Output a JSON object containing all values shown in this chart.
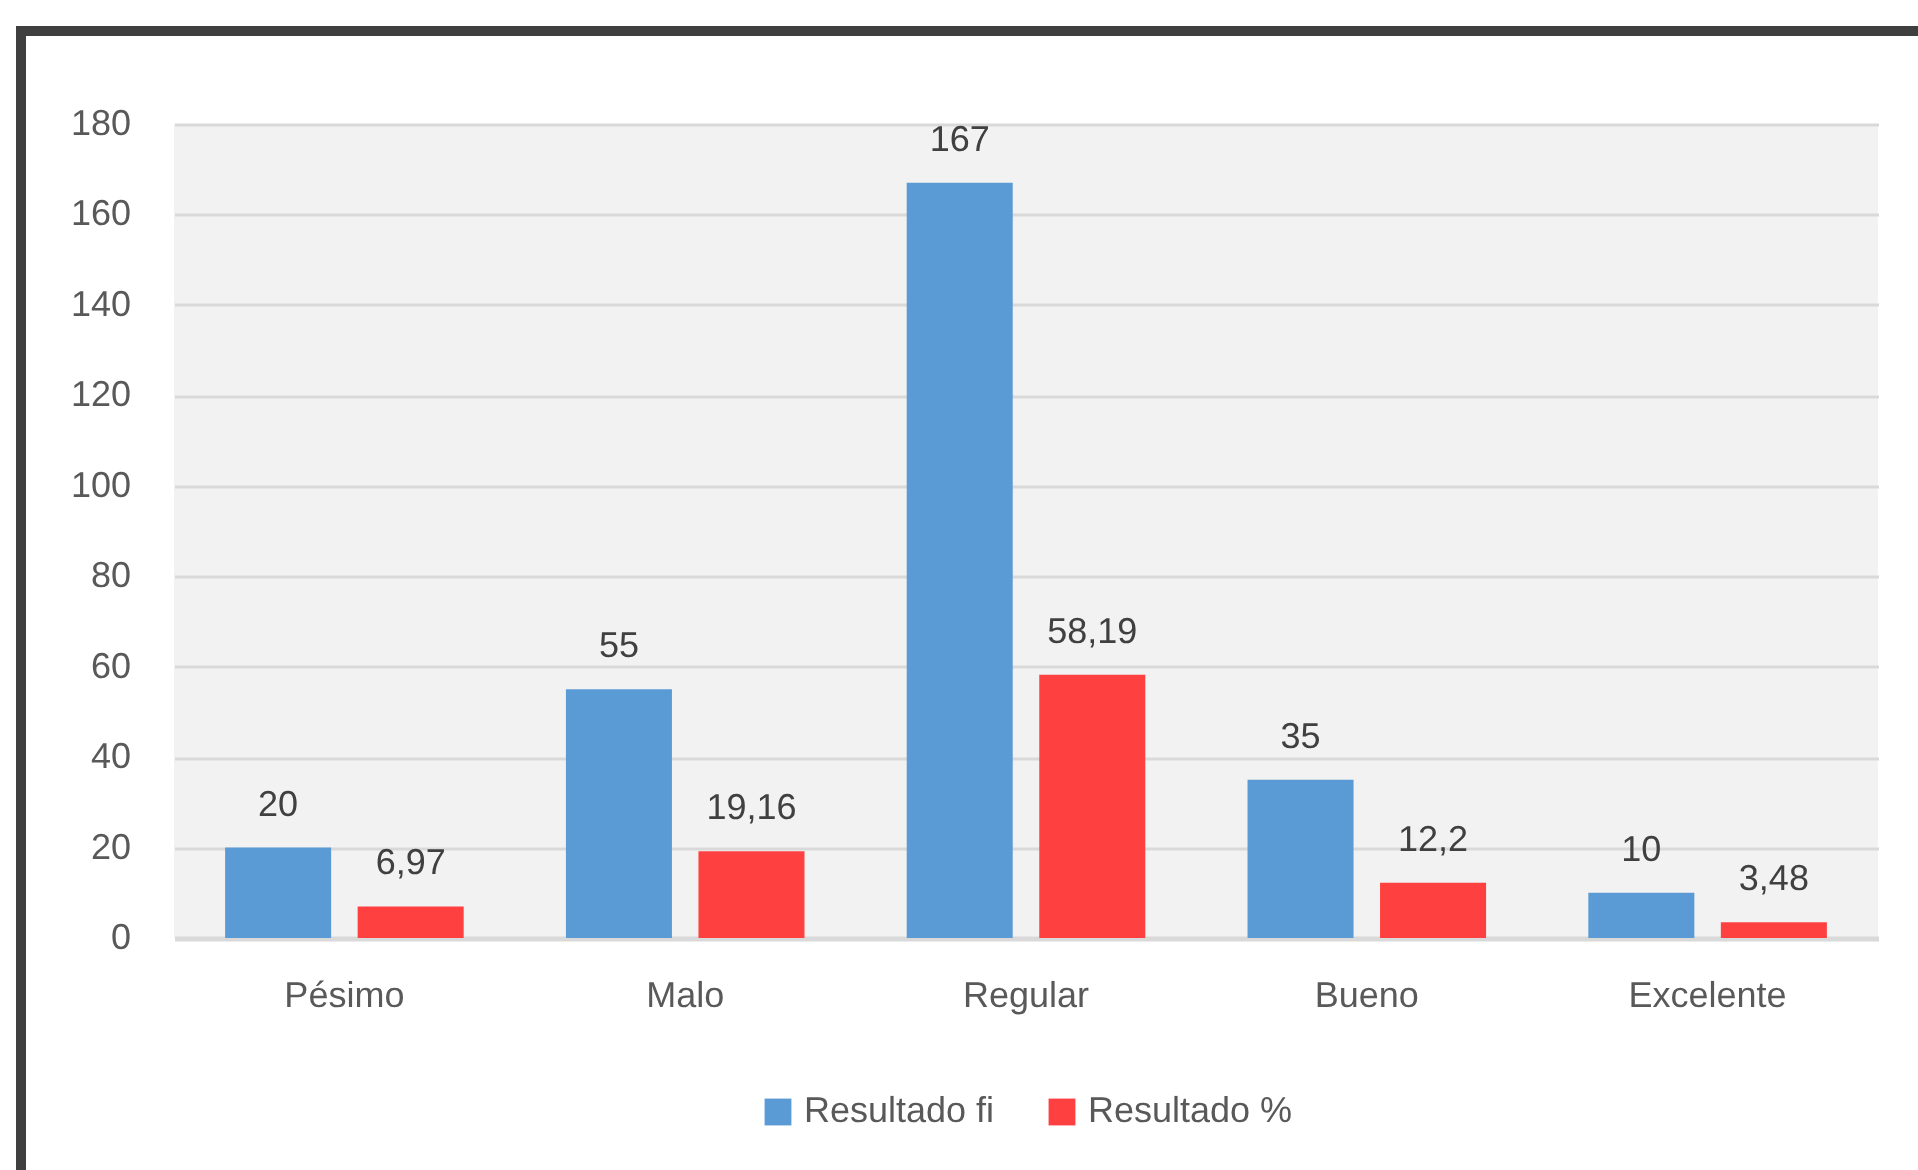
{
  "chart_data": {
    "type": "bar",
    "categories": [
      "Pésimo",
      "Malo",
      "Regular",
      "Bueno",
      "Excelente"
    ],
    "series": [
      {
        "name": "Resultado fi",
        "color": "#5b9bd5",
        "values": [
          20,
          55,
          167,
          35,
          10
        ],
        "value_labels": [
          "20",
          "55",
          "167",
          "35",
          "10"
        ]
      },
      {
        "name": "Resultado %",
        "color": "#ff4040",
        "values": [
          6.97,
          19.16,
          58.19,
          12.2,
          3.48
        ],
        "value_labels": [
          "6,97",
          "19,16",
          "58,19",
          "12,2",
          "3,48"
        ]
      }
    ],
    "ylim": [
      0,
      180
    ],
    "yticks": [
      0,
      20,
      40,
      60,
      80,
      100,
      120,
      140,
      160,
      180
    ],
    "grid": "y",
    "legend": "bottom"
  }
}
